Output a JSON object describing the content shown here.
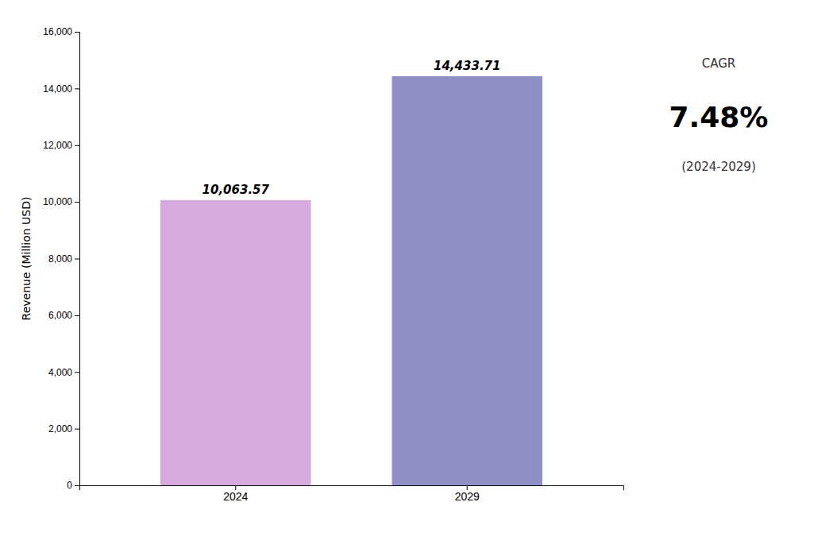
{
  "chart_data": {
    "type": "bar",
    "categories": [
      "2024",
      "2029"
    ],
    "values": [
      10063.57,
      14433.71
    ],
    "value_labels": [
      "10,063.57",
      "14,433.71"
    ],
    "data_labels": true,
    "colors": [
      "#D4AADF",
      "#9090C8"
    ],
    "ylabel": "Revenue (Million USD)",
    "ylim": [
      0,
      16000
    ],
    "yticks": [
      0,
      {
        "value": 2000,
        "label": "2,000"
      },
      {
        "value": 4000,
        "label": "4,000"
      },
      {
        "value": 6000,
        "label": "6,000"
      },
      {
        "value": 8000,
        "label": "8,000"
      },
      {
        "value": 10000,
        "label": "10,000"
      },
      {
        "value": 12000,
        "label": "12,000"
      },
      {
        "value": 14000,
        "label": "14,000"
      },
      {
        "value": 16000,
        "label": "16,000"
      }
    ],
    "grid": false,
    "annotations": [
      "CAGR",
      "7.48%",
      "(2024-2029)"
    ]
  }
}
